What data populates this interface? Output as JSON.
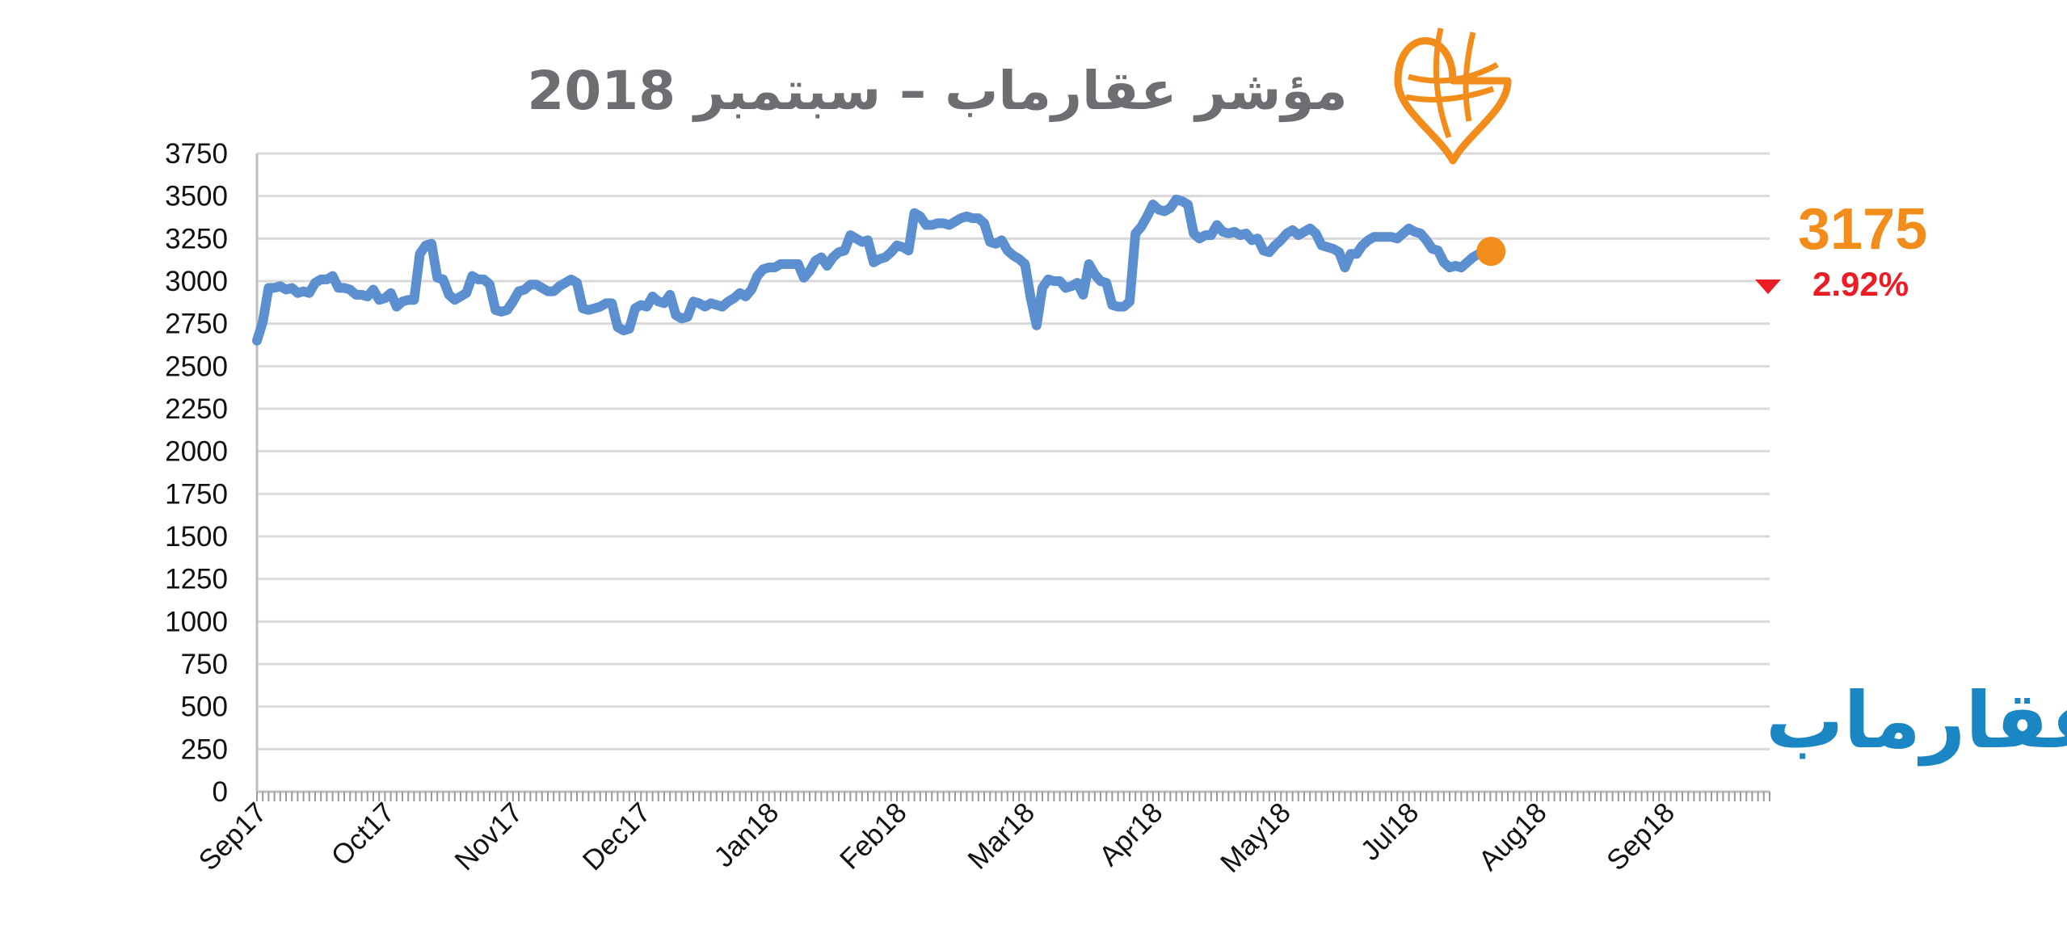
{
  "colors": {
    "line": "#5b8fcf",
    "accent": "#f28c1a",
    "down": "#ec1c24",
    "brand": "#1a86c4",
    "grid": "#d9d9d9",
    "title": "#6d6e71"
  },
  "icons": {
    "logo": "map-pin-globe-icon",
    "trend": "down-triangle-icon"
  },
  "brand_text": "عقارماب",
  "last_value_label": "3175",
  "change_label": "2.92%",
  "chart_data": {
    "type": "line",
    "title": "مؤشر عقارماب – سبتمبر 2018",
    "xlabel": "",
    "ylabel": "",
    "ylim": [
      0,
      3750
    ],
    "yticks": [
      0,
      250,
      500,
      750,
      1000,
      1250,
      1500,
      1750,
      2000,
      2250,
      2500,
      2750,
      3000,
      3250,
      3500,
      3750
    ],
    "grid": true,
    "xlim": [
      0,
      260
    ],
    "month_ticks": [
      {
        "label": "Sep17",
        "x": 0
      },
      {
        "label": "Oct17",
        "x": 22
      },
      {
        "label": "Nov17",
        "x": 44
      },
      {
        "label": "Dec17",
        "x": 66
      },
      {
        "label": "Jan18",
        "x": 88
      },
      {
        "label": "Feb18",
        "x": 110
      },
      {
        "label": "Mar18",
        "x": 132
      },
      {
        "label": "Apr18",
        "x": 154
      },
      {
        "label": "May18",
        "x": 176
      },
      {
        "label": "Jul18",
        "x": 198
      },
      {
        "label": "Aug18",
        "x": 220
      },
      {
        "label": "Sep18",
        "x": 242
      }
    ],
    "series": [
      {
        "points": [
          [
            0,
            2650
          ],
          [
            1,
            2760
          ],
          [
            2,
            2960
          ],
          [
            3,
            2960
          ],
          [
            4,
            2970
          ],
          [
            5,
            2950
          ],
          [
            6,
            2960
          ],
          [
            7,
            2930
          ],
          [
            8,
            2940
          ],
          [
            9,
            2930
          ],
          [
            10,
            2990
          ],
          [
            11,
            3010
          ],
          [
            12,
            3010
          ],
          [
            13,
            3030
          ],
          [
            14,
            2960
          ],
          [
            15,
            2960
          ],
          [
            16,
            2950
          ],
          [
            17,
            2920
          ],
          [
            18,
            2920
          ],
          [
            19,
            2910
          ],
          [
            20,
            2950
          ],
          [
            21,
            2890
          ],
          [
            22,
            2900
          ],
          [
            23,
            2930
          ],
          [
            24,
            2850
          ],
          [
            25,
            2880
          ],
          [
            26,
            2890
          ],
          [
            27,
            2890
          ],
          [
            28,
            3160
          ],
          [
            29,
            3210
          ],
          [
            30,
            3220
          ],
          [
            31,
            3020
          ],
          [
            32,
            3010
          ],
          [
            33,
            2920
          ],
          [
            34,
            2890
          ],
          [
            35,
            2910
          ],
          [
            36,
            2930
          ],
          [
            37,
            3030
          ],
          [
            38,
            3010
          ],
          [
            39,
            3010
          ],
          [
            40,
            2980
          ],
          [
            41,
            2830
          ],
          [
            42,
            2820
          ],
          [
            43,
            2830
          ],
          [
            44,
            2880
          ],
          [
            45,
            2940
          ],
          [
            46,
            2950
          ],
          [
            47,
            2980
          ],
          [
            48,
            2980
          ],
          [
            49,
            2960
          ],
          [
            50,
            2940
          ],
          [
            51,
            2940
          ],
          [
            52,
            2970
          ],
          [
            53,
            2990
          ],
          [
            54,
            3010
          ],
          [
            55,
            2990
          ],
          [
            56,
            2840
          ],
          [
            57,
            2830
          ],
          [
            58,
            2840
          ],
          [
            59,
            2850
          ],
          [
            60,
            2870
          ],
          [
            61,
            2870
          ],
          [
            62,
            2730
          ],
          [
            63,
            2710
          ],
          [
            64,
            2720
          ],
          [
            65,
            2840
          ],
          [
            66,
            2860
          ],
          [
            67,
            2850
          ],
          [
            68,
            2910
          ],
          [
            69,
            2880
          ],
          [
            70,
            2870
          ],
          [
            71,
            2920
          ],
          [
            72,
            2800
          ],
          [
            73,
            2780
          ],
          [
            74,
            2790
          ],
          [
            75,
            2880
          ],
          [
            76,
            2870
          ],
          [
            77,
            2850
          ],
          [
            78,
            2870
          ],
          [
            79,
            2860
          ],
          [
            80,
            2850
          ],
          [
            81,
            2880
          ],
          [
            82,
            2900
          ],
          [
            83,
            2930
          ],
          [
            84,
            2910
          ],
          [
            85,
            2950
          ],
          [
            86,
            3030
          ],
          [
            87,
            3070
          ],
          [
            88,
            3080
          ],
          [
            89,
            3080
          ],
          [
            90,
            3100
          ],
          [
            91,
            3100
          ],
          [
            92,
            3100
          ],
          [
            93,
            3100
          ],
          [
            94,
            3020
          ],
          [
            95,
            3060
          ],
          [
            96,
            3120
          ],
          [
            97,
            3140
          ],
          [
            98,
            3090
          ],
          [
            99,
            3140
          ],
          [
            100,
            3170
          ],
          [
            101,
            3180
          ],
          [
            102,
            3270
          ],
          [
            103,
            3250
          ],
          [
            104,
            3230
          ],
          [
            105,
            3240
          ],
          [
            106,
            3110
          ],
          [
            107,
            3130
          ],
          [
            108,
            3140
          ],
          [
            109,
            3170
          ],
          [
            110,
            3210
          ],
          [
            111,
            3200
          ],
          [
            112,
            3180
          ],
          [
            113,
            3400
          ],
          [
            114,
            3380
          ],
          [
            115,
            3330
          ],
          [
            116,
            3330
          ],
          [
            117,
            3340
          ],
          [
            118,
            3340
          ],
          [
            119,
            3330
          ],
          [
            120,
            3350
          ],
          [
            121,
            3370
          ],
          [
            122,
            3380
          ],
          [
            123,
            3370
          ],
          [
            124,
            3370
          ],
          [
            125,
            3340
          ],
          [
            126,
            3230
          ],
          [
            127,
            3220
          ],
          [
            128,
            3240
          ],
          [
            129,
            3180
          ],
          [
            130,
            3150
          ],
          [
            131,
            3130
          ],
          [
            132,
            3100
          ],
          [
            133,
            2900
          ],
          [
            134,
            2740
          ],
          [
            135,
            2960
          ],
          [
            136,
            3010
          ],
          [
            137,
            3000
          ],
          [
            138,
            3000
          ],
          [
            139,
            2960
          ],
          [
            140,
            2970
          ],
          [
            141,
            2990
          ],
          [
            142,
            2920
          ],
          [
            143,
            3100
          ],
          [
            144,
            3040
          ],
          [
            145,
            3000
          ],
          [
            146,
            2990
          ],
          [
            147,
            2860
          ],
          [
            148,
            2850
          ],
          [
            149,
            2850
          ],
          [
            150,
            2880
          ],
          [
            151,
            3280
          ],
          [
            152,
            3320
          ],
          [
            153,
            3380
          ],
          [
            154,
            3450
          ],
          [
            155,
            3420
          ],
          [
            156,
            3410
          ],
          [
            157,
            3430
          ],
          [
            158,
            3480
          ],
          [
            159,
            3470
          ],
          [
            160,
            3450
          ],
          [
            161,
            3280
          ],
          [
            162,
            3250
          ],
          [
            163,
            3270
          ],
          [
            164,
            3270
          ],
          [
            165,
            3330
          ],
          [
            166,
            3290
          ],
          [
            167,
            3280
          ],
          [
            168,
            3290
          ],
          [
            169,
            3270
          ],
          [
            170,
            3280
          ],
          [
            171,
            3240
          ],
          [
            172,
            3250
          ],
          [
            173,
            3180
          ],
          [
            174,
            3170
          ],
          [
            175,
            3210
          ],
          [
            176,
            3240
          ],
          [
            177,
            3280
          ],
          [
            178,
            3300
          ],
          [
            179,
            3270
          ],
          [
            180,
            3290
          ],
          [
            181,
            3310
          ],
          [
            182,
            3280
          ],
          [
            183,
            3210
          ],
          [
            184,
            3200
          ],
          [
            185,
            3190
          ],
          [
            186,
            3170
          ],
          [
            187,
            3080
          ],
          [
            188,
            3160
          ],
          [
            189,
            3160
          ],
          [
            190,
            3210
          ],
          [
            191,
            3240
          ],
          [
            192,
            3260
          ],
          [
            193,
            3260
          ],
          [
            194,
            3260
          ],
          [
            195,
            3260
          ],
          [
            196,
            3250
          ],
          [
            197,
            3280
          ],
          [
            198,
            3310
          ],
          [
            199,
            3290
          ],
          [
            200,
            3280
          ],
          [
            201,
            3240
          ],
          [
            202,
            3190
          ],
          [
            203,
            3180
          ],
          [
            204,
            3110
          ],
          [
            205,
            3080
          ],
          [
            206,
            3090
          ],
          [
            207,
            3080
          ],
          [
            208,
            3110
          ],
          [
            209,
            3140
          ],
          [
            210,
            3160
          ],
          [
            211,
            3175
          ]
        ]
      }
    ],
    "last_value": 3175,
    "change_pct": 2.92,
    "change_direction": "down"
  }
}
